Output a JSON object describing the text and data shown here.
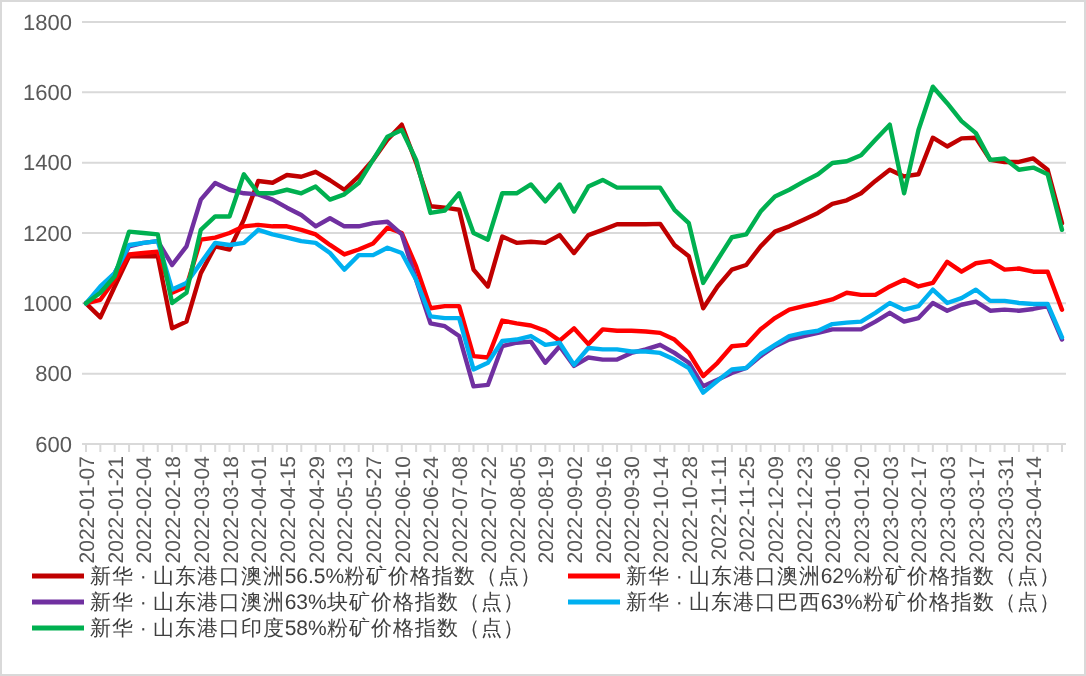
{
  "chart_data": {
    "type": "line",
    "categories": [
      "2022-01-07",
      null,
      "2022-01-21",
      null,
      "2022-02-04",
      null,
      "2022-02-18",
      null,
      "2022-03-04",
      null,
      "2022-03-18",
      null,
      "2022-04-01",
      null,
      "2022-04-15",
      null,
      "2022-04-29",
      null,
      "2022-05-13",
      null,
      "2022-05-27",
      null,
      "2022-06-10",
      null,
      "2022-06-24",
      null,
      "2022-07-08",
      null,
      "2022-07-22",
      null,
      "2022-08-05",
      null,
      "2022-08-19",
      null,
      "2022-09-02",
      null,
      "2022-09-16",
      null,
      "2022-09-30",
      null,
      "2022-10-14",
      null,
      "2022-10-28",
      null,
      "2022-11-11",
      null,
      "2022-11-25",
      null,
      "2022-12-09",
      null,
      "2022-12-23",
      null,
      "2023-01-06",
      null,
      "2023-01-20",
      null,
      "2023-02-03",
      null,
      "2023-02-17",
      null,
      "2023-03-03",
      null,
      "2023-03-17",
      null,
      "2023-03-31",
      null,
      "2023-04-14",
      null,
      null
    ],
    "series": [
      {
        "name": "新华 · 山东港口澳洲56.5%粉矿价格指数（点）",
        "color": "#c00000",
        "values": [
          1000,
          960,
          1048,
          1134,
          1134,
          1134,
          929,
          948,
          1086,
          1162,
          1153,
          1238,
          1348,
          1343,
          1365,
          1360,
          1374,
          1350,
          1323,
          1361,
          1408,
          1465,
          1508,
          1400,
          1276,
          1272,
          1266,
          1096,
          1048,
          1190,
          1172,
          1175,
          1172,
          1194,
          1143,
          1194,
          1209,
          1225,
          1225,
          1225,
          1226,
          1166,
          1134,
          986,
          1048,
          1096,
          1109,
          1162,
          1204,
          1219,
          1238,
          1257,
          1283,
          1293,
          1313,
          1348,
          1380,
          1361,
          1367,
          1471,
          1446,
          1469,
          1471,
          1408,
          1402,
          1402,
          1412,
          1380,
          1228
        ]
      },
      {
        "name": "新华 · 山东港口澳洲62%粉矿价格指数（点）",
        "color": "#ff0000",
        "values": [
          1000,
          1010,
          1067,
          1139,
          1143,
          1147,
          1030,
          1048,
          1181,
          1187,
          1200,
          1219,
          1223,
          1219,
          1219,
          1209,
          1196,
          1166,
          1139,
          1153,
          1170,
          1215,
          1200,
          1105,
          986,
          992,
          992,
          850,
          846,
          951,
          943,
          937,
          922,
          894,
          929,
          884,
          926,
          922,
          922,
          920,
          916,
          897,
          859,
          793,
          831,
          878,
          882,
          926,
          958,
          982,
          992,
          1001,
          1011,
          1030,
          1024,
          1024,
          1048,
          1067,
          1048,
          1058,
          1118,
          1090,
          1114,
          1120,
          1096,
          1099,
          1090,
          1090,
          982
        ]
      },
      {
        "name": "新华 · 山东港口澳洲63%块矿价格指数（点）",
        "color": "#7030a0",
        "values": [
          1000,
          1039,
          1086,
          1162,
          1172,
          1177,
          1109,
          1162,
          1295,
          1342,
          1323,
          1313,
          1310,
          1295,
          1272,
          1251,
          1219,
          1242,
          1219,
          1219,
          1228,
          1232,
          1196,
          1067,
          943,
          935,
          907,
          764,
          768,
          878,
          888,
          891,
          831,
          878,
          822,
          846,
          840,
          840,
          859,
          869,
          882,
          859,
          831,
          764,
          783,
          802,
          816,
          850,
          878,
          897,
          907,
          916,
          926,
          926,
          926,
          948,
          973,
          948,
          958,
          1001,
          979,
          996,
          1005,
          979,
          982,
          979,
          984,
          992,
          897
        ]
      },
      {
        "name": "新华 · 山东港口巴西63%粉矿价格指数（点）",
        "color": "#00b0f0",
        "values": [
          1000,
          1048,
          1086,
          1166,
          1172,
          1177,
          1039,
          1058,
          1115,
          1172,
          1166,
          1172,
          1209,
          1196,
          1187,
          1177,
          1172,
          1143,
          1096,
          1137,
          1137,
          1158,
          1143,
          1067,
          963,
          958,
          958,
          812,
          831,
          893,
          897,
          907,
          882,
          888,
          825,
          873,
          869,
          869,
          863,
          863,
          859,
          840,
          816,
          746,
          780,
          812,
          816,
          856,
          882,
          907,
          916,
          922,
          941,
          945,
          948,
          973,
          1001,
          982,
          992,
          1039,
          1001,
          1015,
          1039,
          1007,
          1007,
          1001,
          998,
          998,
          903
        ]
      },
      {
        "name": "新华 · 山东港口印度58%粉矿价格指数（点）",
        "color": "#00b050",
        "values": [
          1000,
          1030,
          1077,
          1204,
          1200,
          1196,
          1001,
          1030,
          1209,
          1247,
          1247,
          1367,
          1313,
          1313,
          1323,
          1313,
          1332,
          1295,
          1310,
          1342,
          1408,
          1474,
          1493,
          1408,
          1257,
          1264,
          1313,
          1200,
          1181,
          1313,
          1313,
          1338,
          1290,
          1338,
          1261,
          1332,
          1351,
          1329,
          1329,
          1329,
          1329,
          1266,
          1228,
          1058,
          1124,
          1188,
          1196,
          1261,
          1304,
          1323,
          1346,
          1367,
          1399,
          1404,
          1421,
          1465,
          1508,
          1313,
          1493,
          1616,
          1569,
          1518,
          1484,
          1408,
          1412,
          1380,
          1386,
          1367,
          1209
        ]
      }
    ],
    "ylim": [
      600,
      1800
    ],
    "yticks": [
      600,
      800,
      1000,
      1200,
      1400,
      1600,
      1800
    ],
    "grid": "y",
    "legend": "bottom"
  }
}
